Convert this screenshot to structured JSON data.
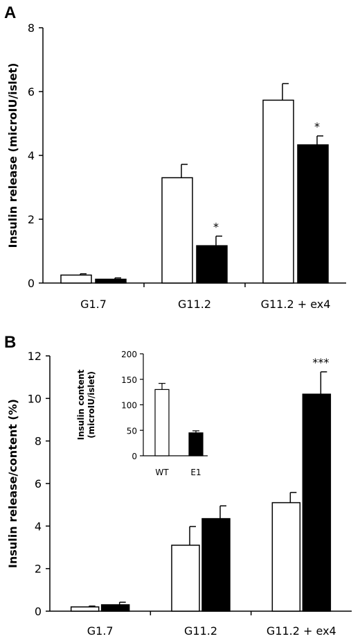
{
  "chart_data": [
    {
      "type": "bar",
      "panel": "A",
      "ylabel": "Insulin release (microIU/islet)",
      "ylim": [
        0,
        8
      ],
      "yticks": [
        0,
        2,
        4,
        6,
        8
      ],
      "categories": [
        "G1.7",
        "G11.2",
        "G11.2 + ex4"
      ],
      "series": [
        {
          "values": [
            0.25,
            3.3,
            5.73
          ],
          "errors": [
            0.04,
            0.42,
            0.52
          ],
          "color": "#ffffff"
        },
        {
          "values": [
            0.12,
            1.17,
            4.33
          ],
          "errors": [
            0.04,
            0.3,
            0.28
          ],
          "color": "#000000"
        }
      ],
      "annotations": [
        "",
        "*",
        "*"
      ]
    },
    {
      "type": "bar",
      "panel": "B",
      "ylabel": "Insulin release/content (%)",
      "ylim": [
        0,
        12
      ],
      "yticks": [
        0,
        2,
        4,
        6,
        8,
        10,
        12
      ],
      "categories": [
        "G1.7",
        "G11.2",
        "G11.2 + ex4"
      ],
      "series": [
        {
          "values": [
            0.2,
            3.1,
            5.1
          ],
          "errors": [
            0.04,
            0.88,
            0.48
          ],
          "color": "#ffffff"
        },
        {
          "values": [
            0.3,
            4.35,
            10.2
          ],
          "errors": [
            0.12,
            0.6,
            1.05
          ],
          "color": "#000000"
        }
      ],
      "annotations": [
        "",
        "",
        "***"
      ]
    },
    {
      "type": "bar",
      "panel": "B-inset",
      "ylabel": "Insulin content (microIU/islet)",
      "ylim": [
        0,
        200
      ],
      "yticks": [
        0,
        50,
        100,
        150,
        200
      ],
      "categories": [
        "WT",
        "E1"
      ],
      "values": [
        130,
        45
      ],
      "errors": [
        12,
        4
      ],
      "colors": [
        "#ffffff",
        "#000000"
      ]
    }
  ]
}
